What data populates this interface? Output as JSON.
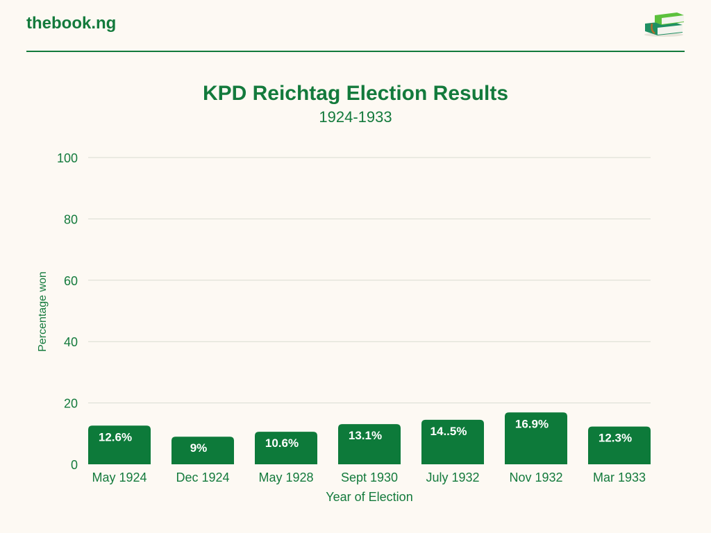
{
  "header": {
    "brand": "thebook.ng",
    "logo_icon": "books-icon"
  },
  "chart_data": {
    "type": "bar",
    "title": "KPD Reichtag Election Results",
    "subtitle": "1924-1933",
    "xlabel": "Year of Election",
    "ylabel": "Percentage won",
    "ylim": [
      0,
      100
    ],
    "yticks": [
      0,
      20,
      40,
      60,
      80,
      100
    ],
    "grid": true,
    "categories": [
      "May 1924",
      "Dec 1924",
      "May 1928",
      "Sept 1930",
      "July 1932",
      "Nov 1932",
      "Mar 1933"
    ],
    "values": [
      12.6,
      9,
      10.6,
      13.1,
      14.5,
      16.9,
      12.3
    ],
    "data_labels": [
      "12.6%",
      "9%",
      "10.6%",
      "13.1%",
      "14..5%",
      "16.9%",
      "12.3%"
    ],
    "colors": {
      "bar": "#0d7a3a",
      "text": "#137a3c",
      "grid": "#d9dcd2"
    }
  }
}
